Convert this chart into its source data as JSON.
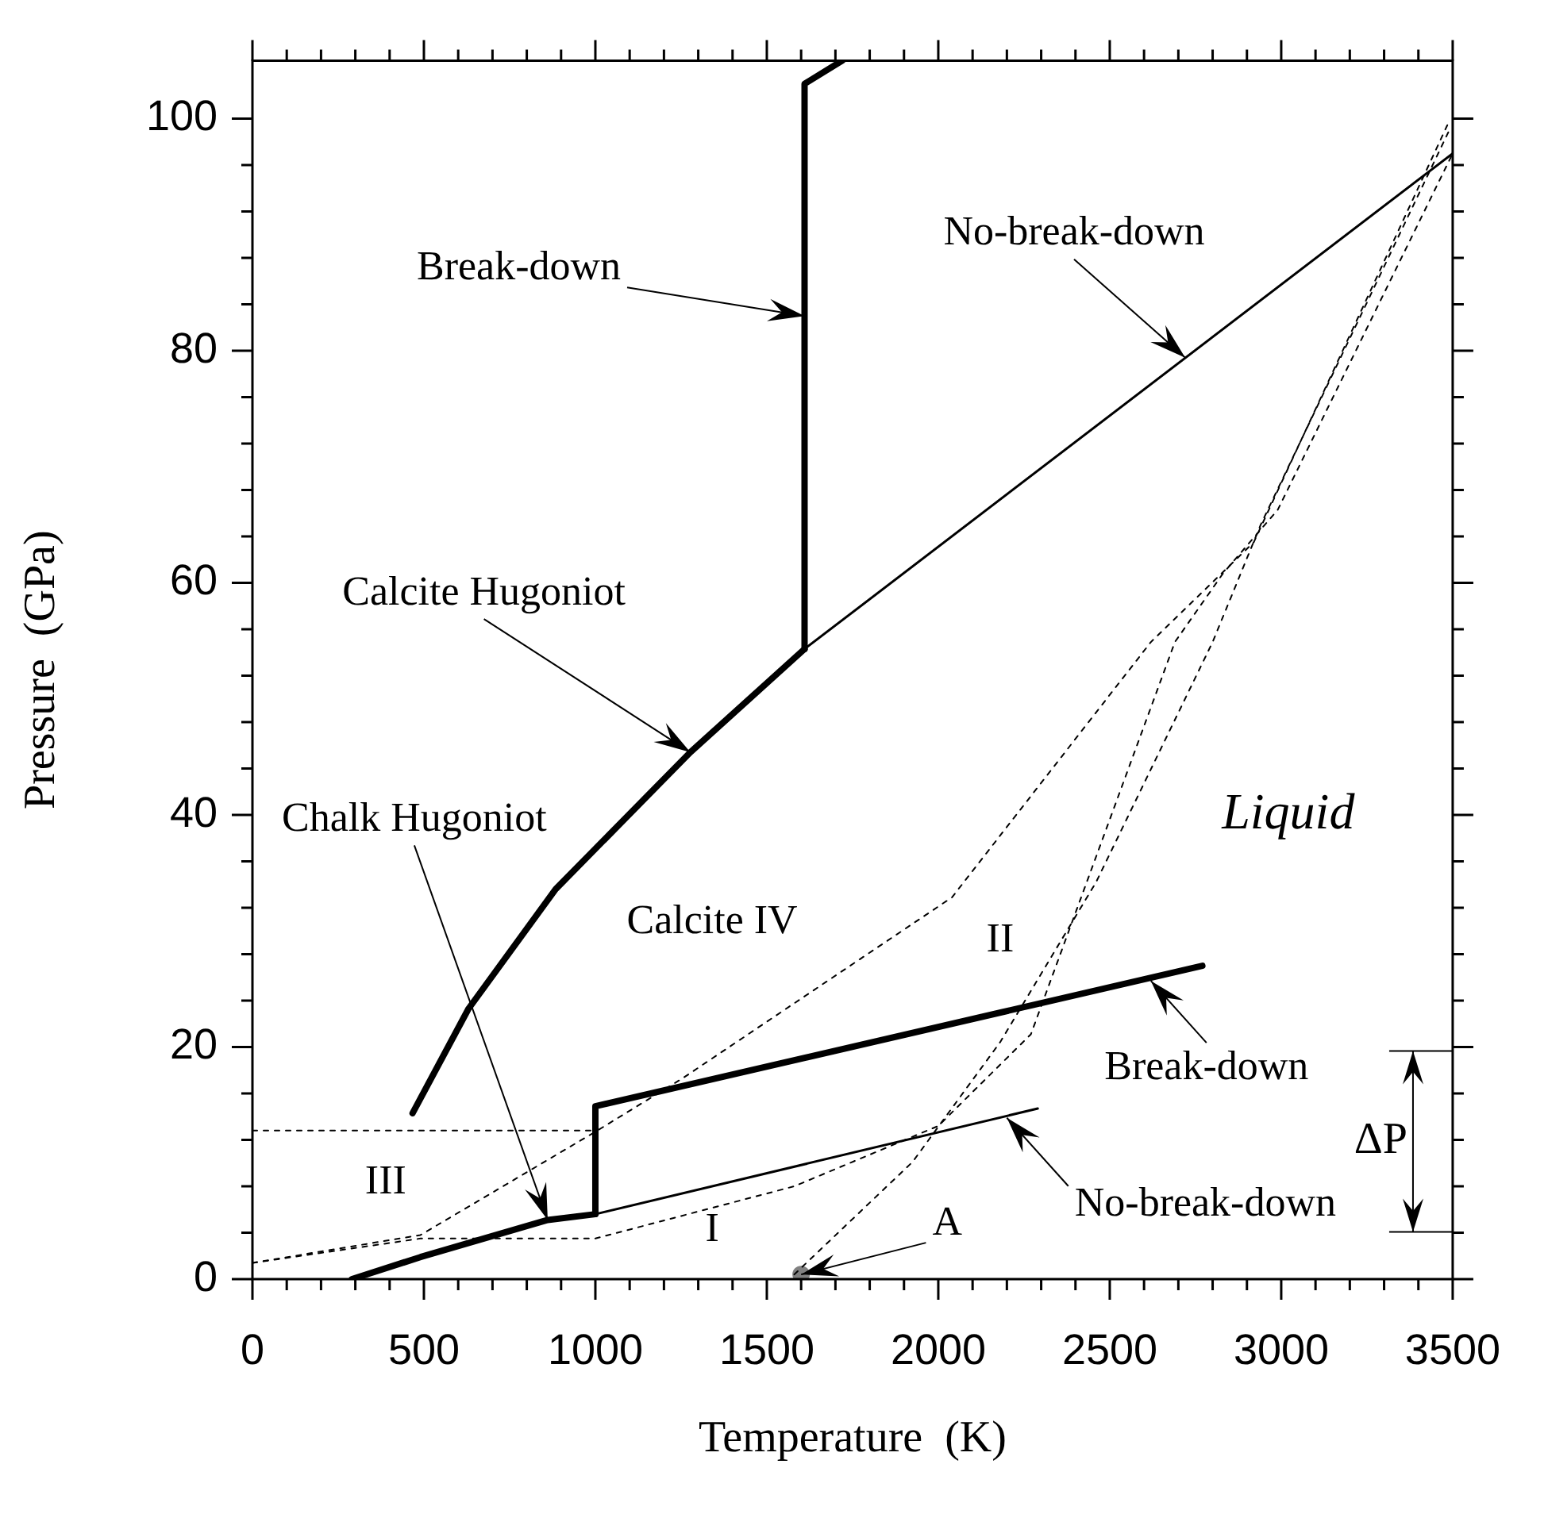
{
  "chart_data": {
    "type": "line",
    "xlabel": "Temperature  (K)",
    "ylabel": "Pressure  (GPa)",
    "xlim": [
      0,
      3500
    ],
    "ylim": [
      0,
      105
    ],
    "xticks": [
      0,
      {
        "value": 100,
        "label": null
      },
      {
        "value": 200,
        "label": null
      },
      {
        "value": 300,
        "label": null
      },
      {
        "value": 400,
        "label": null
      },
      500,
      {
        "value": 600,
        "label": null
      },
      {
        "value": 700,
        "label": null
      },
      {
        "value": 800,
        "label": null
      },
      {
        "value": 900,
        "label": null
      },
      1000,
      {
        "value": 1100,
        "label": null
      },
      {
        "value": 1200,
        "label": null
      },
      {
        "value": 1300,
        "label": null
      },
      {
        "value": 1400,
        "label": null
      },
      1500,
      {
        "value": 1600,
        "label": null
      },
      {
        "value": 1700,
        "label": null
      },
      {
        "value": 1800,
        "label": null
      },
      {
        "value": 1900,
        "label": null
      },
      2000,
      {
        "value": 2100,
        "label": null
      },
      {
        "value": 2200,
        "label": null
      },
      {
        "value": 2300,
        "label": null
      },
      {
        "value": 2400,
        "label": null
      },
      2500,
      {
        "value": 2600,
        "label": null
      },
      {
        "value": 2700,
        "label": null
      },
      {
        "value": 2800,
        "label": null
      },
      {
        "value": 2900,
        "label": null
      },
      3000,
      {
        "value": 3100,
        "label": null
      },
      {
        "value": 3200,
        "label": null
      },
      {
        "value": 3300,
        "label": null
      },
      {
        "value": 3400,
        "label": null
      },
      3500
    ],
    "yticks": [
      0,
      {
        "value": 4,
        "label": null
      },
      {
        "value": 8,
        "label": null
      },
      {
        "value": 12,
        "label": null
      },
      {
        "value": 16,
        "label": null
      },
      20,
      {
        "value": 24,
        "label": null
      },
      {
        "value": 28,
        "label": null
      },
      {
        "value": 32,
        "label": null
      },
      {
        "value": 36,
        "label": null
      },
      40,
      {
        "value": 44,
        "label": null
      },
      {
        "value": 48,
        "label": null
      },
      {
        "value": 52,
        "label": null
      },
      {
        "value": 56,
        "label": null
      },
      60,
      {
        "value": 64,
        "label": null
      },
      {
        "value": 68,
        "label": null
      },
      {
        "value": 72,
        "label": null
      },
      {
        "value": 76,
        "label": null
      },
      80,
      {
        "value": 84,
        "label": null
      },
      {
        "value": 88,
        "label": null
      },
      {
        "value": 92,
        "label": null
      },
      {
        "value": 96,
        "label": null
      },
      100
    ],
    "grid": false,
    "legend": false,
    "series": [
      {
        "color": "#000000",
        "line_style": "solid",
        "x": [
          467,
          630,
          884,
          1277,
          1610
        ],
        "values": [
          14.3,
          23.3,
          33.6,
          45.4,
          54.3
        ]
      },
      {
        "color": "#000000",
        "line_style": "solid",
        "x": [
          1610,
          1610,
          1720
        ],
        "values": [
          54.3,
          103,
          105
        ]
      },
      {
        "color": "#000000",
        "line_style": "solid",
        "x": [
          1610,
          3500
        ],
        "values": [
          54.3,
          97
        ]
      },
      {
        "color": "#000000",
        "line_style": "solid",
        "x": [
          290,
          490,
          861,
          1000
        ],
        "values": [
          0,
          1.9,
          5.1,
          5.6
        ]
      },
      {
        "color": "#000000",
        "line_style": "solid",
        "x": [
          1000,
          1000,
          2770
        ],
        "values": [
          5.6,
          14.9,
          27
        ]
      },
      {
        "color": "#000000",
        "line_style": "solid",
        "x": [
          1000,
          2290
        ],
        "values": [
          5.6,
          14.7
        ]
      },
      {
        "color": "#000000",
        "line_style": "dotted",
        "x": [
          0,
          1000
        ],
        "values": [
          12.8,
          12.8
        ]
      },
      {
        "color": "#000000",
        "line_style": "dotted",
        "x": [
          0,
          490,
          1000,
          1254,
          2040,
          2620,
          2920,
          3490
        ],
        "values": [
          1.4,
          3.8,
          12.7,
          17.3,
          32.9,
          54.9,
          63.5,
          99.8
        ]
      },
      {
        "color": "#000000",
        "line_style": "dotted",
        "x": [
          0,
          490,
          1000,
          1580,
          2000,
          2270,
          2690,
          2830,
          2990,
          3500
        ],
        "values": [
          1.4,
          3.5,
          3.5,
          8,
          13.2,
          21.1,
          54.9,
          60.8,
          66.3,
          97
        ]
      },
      {
        "color": "#000000",
        "line_style": "dotted",
        "x": [
          1580,
          1925,
          2180,
          2460,
          2800,
          2940,
          3490
        ],
        "values": [
          0.4,
          10.1,
          20.4,
          34.2,
          54.9,
          65,
          99
        ]
      },
      {
        "type": "scatter",
        "color": "#808080",
        "marker": "circle",
        "x": [
          1600
        ],
        "values": [
          0.4
        ]
      }
    ],
    "annotations": [
      {
        "text": "Break-down",
        "x": 1610,
        "y": 83
      },
      {
        "text": "No-break-down",
        "x": 2720,
        "y": 79.4
      },
      {
        "text": "Calcite Hugoniot",
        "x": 1277,
        "y": 45.4
      },
      {
        "text": "Chalk Hugoniot",
        "x": 861,
        "y": 5.1
      },
      {
        "text": "Break-down",
        "x": 2620,
        "y": 25.7
      },
      {
        "text": "No-break-down",
        "x": 2200,
        "y": 13.9
      },
      {
        "text": "A",
        "x": 1600,
        "y": 0.4
      },
      "Liquid",
      "Calcite IV",
      "II",
      "III",
      "I",
      "ΔP"
    ]
  }
}
